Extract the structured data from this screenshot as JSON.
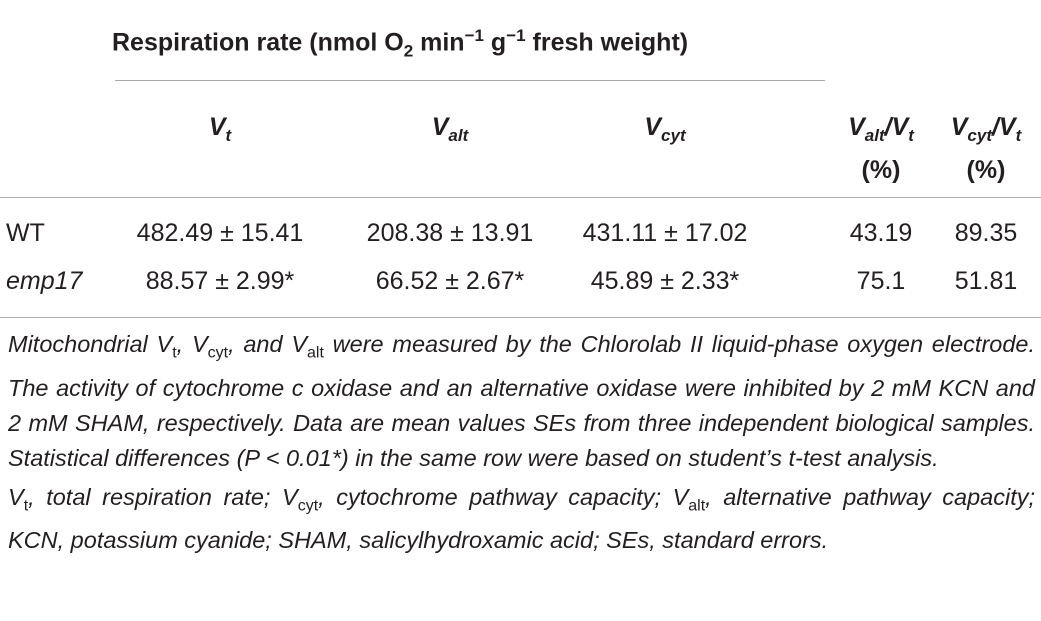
{
  "table": {
    "group_header": [
      "Respiration rate (nmol O",
      "2",
      " min",
      "−1",
      " g",
      "−1",
      " fresh weight)"
    ],
    "columns": [
      [
        "V",
        "t"
      ],
      [
        "V",
        "alt"
      ],
      [
        "V",
        "cyt"
      ],
      [
        "V",
        "alt",
        "/V",
        "t",
        "(%)"
      ],
      [
        "V",
        "cyt",
        "/V",
        "t",
        "(%)"
      ]
    ],
    "rows": [
      [
        "WT",
        "482.49 ± 15.41",
        "208.38 ± 13.91",
        "431.11 ± 17.02",
        "43.19",
        "89.35"
      ],
      [
        "emp17",
        "88.57 ± 2.99*",
        "66.52 ± 2.67*",
        "45.89 ± 2.33*",
        "75.1",
        "51.81"
      ]
    ]
  },
  "notes": [
    [
      "Mitochondrial V",
      "t",
      ", V",
      "cyt",
      ", and V",
      "alt",
      " were measured by the Chlorolab II liquid-phase oxygen electrode. The activity of cytochrome c oxidase and an alternative oxidase were inhibited by 2 mM KCN and 2 mM SHAM, respectively. Data are mean values SEs from three independent biological samples. Statistical differences (P < 0.01*) in the same row were based on student’s t-test analysis."
    ],
    [
      "V",
      "t",
      ", total respiration rate; V",
      "cyt",
      ", cytochrome pathway capacity; V",
      "alt",
      ", alternative pathway capacity; KCN, potassium cyanide; SHAM, salicylhydroxamic acid; SEs, standard errors."
    ]
  ]
}
